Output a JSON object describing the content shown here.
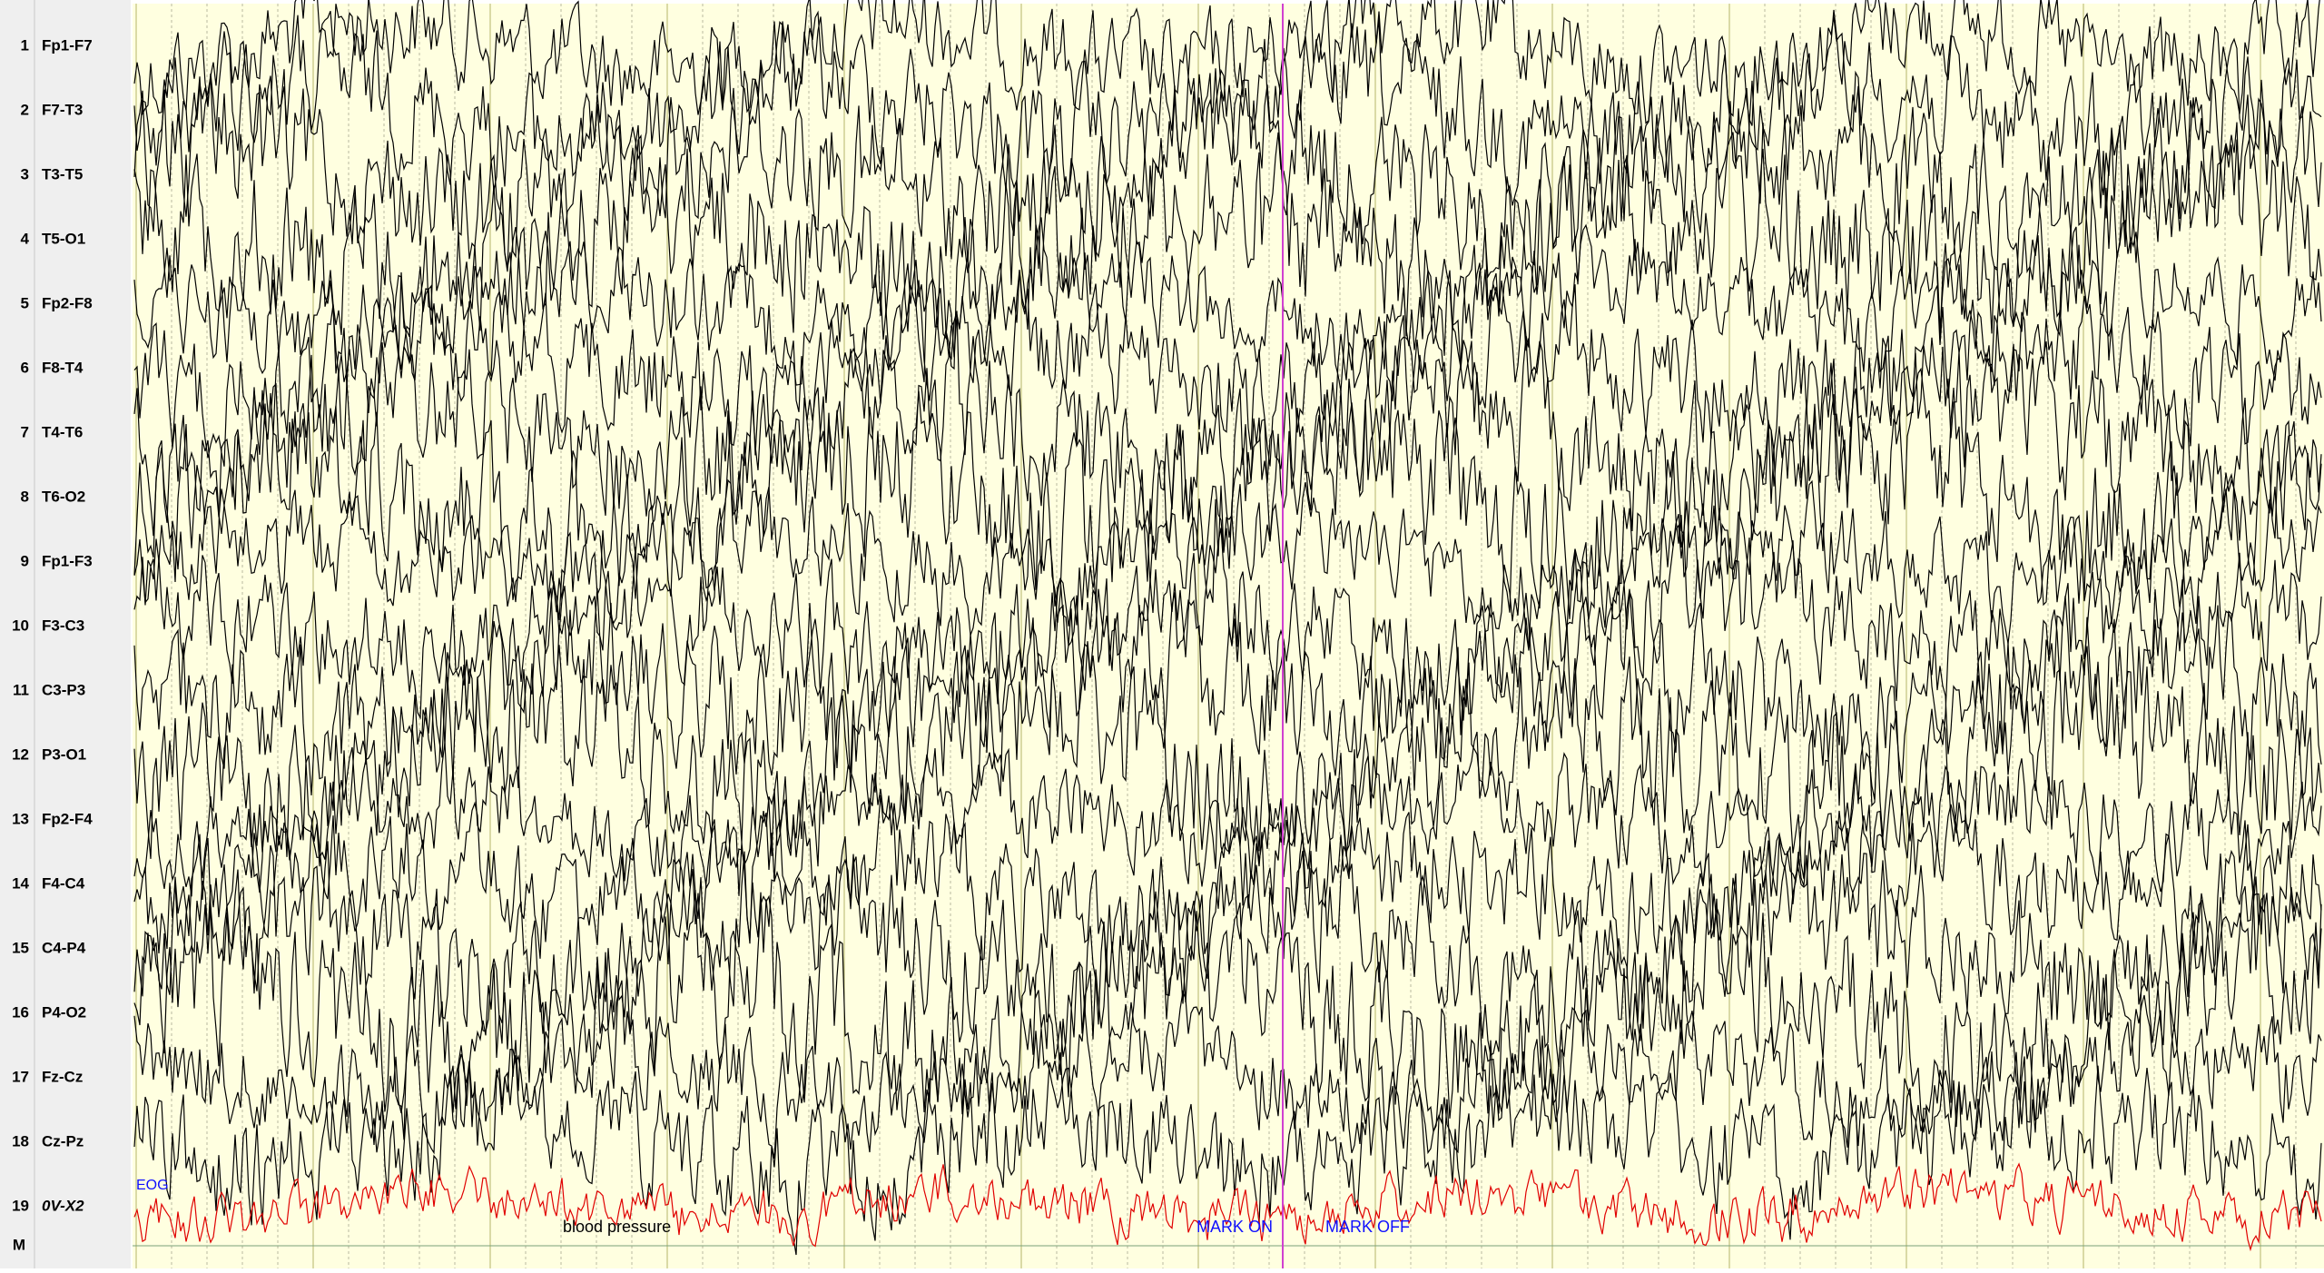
{
  "channels": [
    {
      "number": "1",
      "label": "Fp1-F7"
    },
    {
      "number": "2",
      "label": "F7-T3"
    },
    {
      "number": "3",
      "label": "T3-T5"
    },
    {
      "number": "4",
      "label": "T5-O1"
    },
    {
      "number": "5",
      "label": "Fp2-F8"
    },
    {
      "number": "6",
      "label": "F8-T4"
    },
    {
      "number": "7",
      "label": "T4-T6"
    },
    {
      "number": "8",
      "label": "T6-O2"
    },
    {
      "number": "9",
      "label": "Fp1-F3"
    },
    {
      "number": "10",
      "label": "F3-C3"
    },
    {
      "number": "11",
      "label": "C3-P3"
    },
    {
      "number": "12",
      "label": "P3-O1"
    },
    {
      "number": "13",
      "label": "Fp2-F4"
    },
    {
      "number": "14",
      "label": "F4-C4"
    },
    {
      "number": "15",
      "label": "C4-P4"
    },
    {
      "number": "16",
      "label": "P4-O2"
    },
    {
      "number": "17",
      "label": "Fz-Cz"
    },
    {
      "number": "18",
      "label": "Cz-Pz"
    },
    {
      "number": "19",
      "label": "0V-X2"
    }
  ],
  "marker_row": "M",
  "annotations": {
    "eog": "EOG",
    "note": "blood pressure",
    "mark_on": "MARK ON",
    "mark_off": "MARK OFF"
  }
}
